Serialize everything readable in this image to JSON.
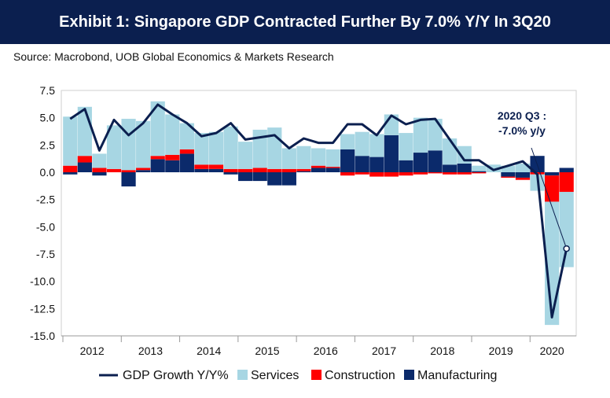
{
  "banner": {
    "title": "Exhibit 1: Singapore GDP Contracted Further By 7.0% Y/Y In 3Q20"
  },
  "source": {
    "text": "Source: Macrobond, UOB Global Economics & Markets Research"
  },
  "colors": {
    "gdp": "#0b1f4f",
    "services": "#a7d6e3",
    "construction": "#ff0000",
    "manufacturing": "#0b2a6b"
  },
  "chart_data": {
    "type": "bar",
    "title": "Exhibit 1: Singapore GDP Contracted Further By 7.0% Y/Y In 3Q20",
    "ylim": [
      -15,
      7.5
    ],
    "yticks": [
      "7.5",
      "5.0",
      "2.5",
      "0.0",
      "-2.5",
      "-5.0",
      "-7.5",
      "-10.0",
      "-12.5",
      "-15.0"
    ],
    "year_labels": [
      "2012",
      "2013",
      "2014",
      "2015",
      "2016",
      "2017",
      "2018",
      "2019",
      "2020"
    ],
    "categories": [
      "2012Q1",
      "2012Q2",
      "2012Q3",
      "2012Q4",
      "2013Q1",
      "2013Q2",
      "2013Q3",
      "2013Q4",
      "2014Q1",
      "2014Q2",
      "2014Q3",
      "2014Q4",
      "2015Q1",
      "2015Q2",
      "2015Q3",
      "2015Q4",
      "2016Q1",
      "2016Q2",
      "2016Q3",
      "2016Q4",
      "2017Q1",
      "2017Q2",
      "2017Q3",
      "2017Q4",
      "2018Q1",
      "2018Q2",
      "2018Q3",
      "2018Q4",
      "2019Q1",
      "2019Q2",
      "2019Q3",
      "2019Q4",
      "2020Q1",
      "2020Q2",
      "2020Q3"
    ],
    "series": [
      {
        "name": "GDP Growth Y/Y%",
        "kind": "line",
        "values": [
          4.9,
          5.8,
          2.0,
          4.8,
          3.4,
          4.5,
          6.2,
          5.3,
          4.5,
          3.3,
          3.6,
          4.5,
          3.0,
          3.2,
          3.4,
          2.2,
          3.1,
          2.7,
          2.7,
          4.4,
          4.4,
          3.4,
          5.2,
          4.4,
          4.8,
          4.9,
          3.0,
          1.1,
          1.1,
          0.2,
          0.6,
          1.0,
          -0.2,
          -13.3,
          -7.0
        ]
      },
      {
        "name": "Services",
        "kind": "bar",
        "values": [
          4.5,
          4.5,
          1.3,
          4.0,
          4.7,
          4.3,
          5.0,
          3.7,
          2.4,
          2.9,
          3.0,
          3.9,
          2.5,
          3.5,
          3.8,
          1.9,
          2.1,
          1.6,
          1.6,
          1.4,
          2.2,
          2.1,
          1.9,
          2.5,
          3.2,
          2.9,
          2.4,
          1.6,
          0.5,
          0.7,
          0.6,
          0.8,
          -1.5,
          -11.3,
          -6.9
        ]
      },
      {
        "name": "Construction",
        "kind": "bar",
        "values": [
          0.6,
          0.6,
          0.4,
          0.3,
          0.2,
          0.2,
          0.3,
          0.5,
          0.4,
          0.4,
          0.4,
          0.3,
          0.3,
          0.4,
          0.3,
          0.3,
          0.2,
          0.2,
          0.1,
          -0.3,
          -0.2,
          -0.4,
          -0.4,
          -0.3,
          -0.2,
          -0.1,
          -0.2,
          -0.2,
          -0.1,
          0.0,
          -0.1,
          -0.2,
          -0.2,
          -2.4,
          -1.8
        ]
      },
      {
        "name": "Manufacturing",
        "kind": "bar",
        "values": [
          -0.2,
          0.9,
          -0.3,
          0.0,
          -1.3,
          0.2,
          1.2,
          1.1,
          1.7,
          0.3,
          0.3,
          -0.2,
          -0.8,
          -0.8,
          -1.2,
          -1.2,
          0.1,
          0.4,
          0.4,
          2.1,
          1.5,
          1.4,
          3.4,
          1.1,
          1.8,
          2.0,
          0.7,
          0.8,
          0.1,
          0.0,
          -0.4,
          -0.5,
          1.5,
          -0.3,
          0.4
        ]
      }
    ],
    "annotation": {
      "line1": "2020 Q3 :",
      "line2": "-7.0% y/y",
      "target_index": 34,
      "target_value": -7.0
    },
    "legend": {
      "placement": "bottom",
      "items": [
        {
          "label": "GDP Growth Y/Y%",
          "kind": "line"
        },
        {
          "label": "Services",
          "kind": "bar"
        },
        {
          "label": "Construction",
          "kind": "bar"
        },
        {
          "label": "Manufacturing",
          "kind": "bar"
        }
      ]
    }
  }
}
